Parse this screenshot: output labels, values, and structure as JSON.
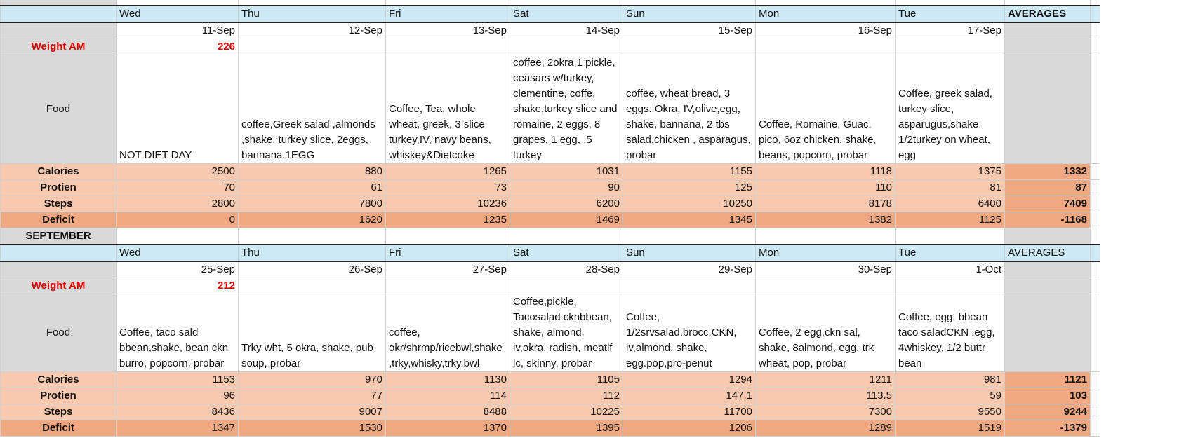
{
  "weeks": [
    {
      "days": [
        "Wed",
        "Thu",
        "Fri",
        "Sat",
        "Sun",
        "Mon",
        "Tue"
      ],
      "averages_label": "AVERAGES",
      "dates": [
        "11-Sep",
        "12-Sep",
        "13-Sep",
        "14-Sep",
        "15-Sep",
        "16-Sep",
        "17-Sep"
      ],
      "weight_label": "Weight AM",
      "weight": "226",
      "food_label": "Food",
      "food": [
        "NOT DIET DAY",
        "coffee,Greek salad ,almonds ,shake, turkey slice, 2eggs, bannana,1EGG",
        "Coffee, Tea, whole wheat, greek, 3 slice turkey,IV,  navy beans, whiskey&Dietcoke",
        "coffee, 2okra,1 pickle, ceasars w/turkey, clementine, coffe, shake,turkey slice and romaine,  2  eggs, 8 grapes, 1 egg, .5 turkey",
        "coffee,  wheat bread, 3 eggs. Okra, IV,olive,egg, shake, bannana, 2 tbs salad,chicken , asparagus, probar",
        "Coffee, Romaine, Guac, pico, 6oz chicken, shake, beans, popcorn, probar",
        "Coffee, greek salad, turkey slice, asparugus,shake 1/2turkey on wheat, egg"
      ],
      "calories_label": "Calories",
      "calories": [
        "2500",
        "880",
        "1265",
        "1031",
        "1155",
        "1118",
        "1375"
      ],
      "calories_avg": "1332",
      "protein_label": "Protien",
      "protein": [
        "70",
        "61",
        "73",
        "90",
        "125",
        "110",
        "81"
      ],
      "protein_avg": "87",
      "steps_label": "Steps",
      "steps": [
        "2800",
        "7800",
        "10236",
        "6200",
        "10250",
        "8178",
        "6400"
      ],
      "steps_avg": "7409",
      "deficit_label": "Deficit",
      "deficit": [
        "0",
        "1620",
        "1235",
        "1469",
        "1345",
        "1382",
        "1125"
      ],
      "deficit_avg": "-1168"
    },
    {
      "month_label": "SEPTEMBER",
      "days": [
        "Wed",
        "Thu",
        "Fri",
        "Sat",
        "Sun",
        "Mon",
        "Tue"
      ],
      "averages_label": "AVERAGES",
      "dates": [
        "25-Sep",
        "26-Sep",
        "27-Sep",
        "28-Sep",
        "29-Sep",
        "30-Sep",
        "1-Oct"
      ],
      "weight_label": "Weight AM",
      "weight": "212",
      "food_label": "Food",
      "food": [
        "Coffee, taco sald bbean,shake, bean ckn burro, popcorn, probar",
        "Trky wht, 5 okra, shake, pub soup, probar",
        "coffee, okr/shrmp/ricebwl,shake ,trky,whisky,trky,bwl",
        "Coffee,pickle, Tacosalad cknbbean, shake, almond, iv,okra, radish, meatlf lc, skinny, probar",
        "Coffee, 1/2srvsalad.brocc,CKN, iv,almond, shake, egg.pop,pro-penut",
        "Coffee, 2 egg,ckn sal, shake, 8almond, egg, trk wheat, pop, probar",
        "Coffee, egg, bbean taco saladCKN ,egg, 4whiskey, 1/2 buttr bean"
      ],
      "calories_label": "Calories",
      "calories": [
        "1153",
        "970",
        "1130",
        "1105",
        "1294",
        "1211",
        "981"
      ],
      "calories_avg": "1121",
      "protein_label": "Protien",
      "protein": [
        "96",
        "77",
        "114",
        "112",
        "147.1",
        "113.5",
        "59"
      ],
      "protein_avg": "103",
      "steps_label": "Steps",
      "steps": [
        "8436",
        "9007",
        "8488",
        "10225",
        "11700",
        "7300",
        "9550"
      ],
      "steps_avg": "9244",
      "deficit_label": "Deficit",
      "deficit": [
        "1347",
        "1530",
        "1370",
        "1395",
        "1206",
        "1289",
        "1519"
      ],
      "deficit_avg": "-1379"
    }
  ],
  "colors": {
    "header_blue": "#cde9f6",
    "label_gray": "#d9d9d9",
    "metric_peach": "#f8c9ae",
    "deficit_orange": "#f0a882",
    "weight_red": "#e00000"
  }
}
